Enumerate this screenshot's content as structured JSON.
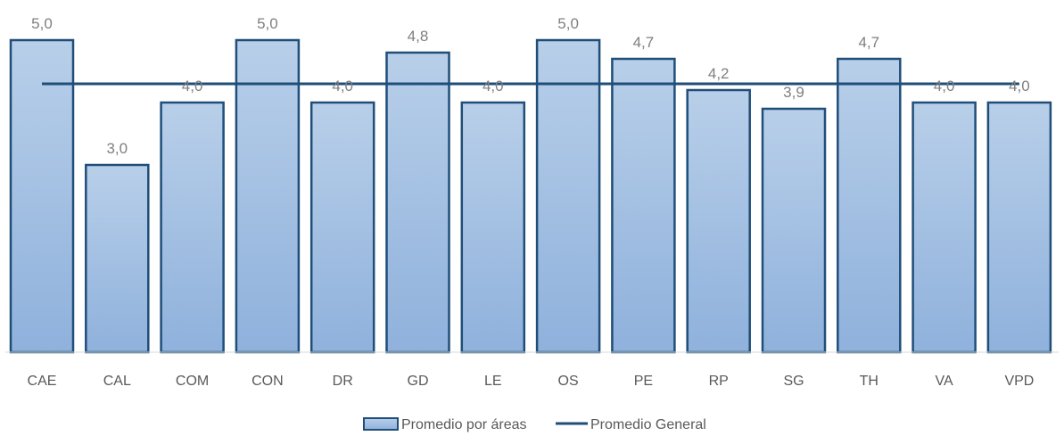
{
  "chart_data": {
    "type": "bar",
    "categories": [
      "CAE",
      "CAL",
      "COM",
      "CON",
      "DR",
      "GD",
      "LE",
      "OS",
      "PE",
      "RP",
      "SG",
      "TH",
      "VA",
      "VPD"
    ],
    "series": [
      {
        "name": "Promedio por áreas",
        "type": "bar",
        "values": [
          5.0,
          3.0,
          4.0,
          5.0,
          4.0,
          4.8,
          4.0,
          5.0,
          4.7,
          4.2,
          3.9,
          4.7,
          4.0,
          4.0
        ],
        "labels": [
          "5,0",
          "3,0",
          "4,0",
          "5,0",
          "4,0",
          "4,8",
          "4,0",
          "5,0",
          "4,7",
          "4,2",
          "3,9",
          "4,7",
          "4,0",
          "4,0"
        ],
        "fill_top": "#b8cfe9",
        "fill_bottom": "#8fb1dc",
        "stroke": "#1f4e79"
      },
      {
        "name": "Promedio General",
        "type": "line",
        "value": 4.3,
        "stroke": "#1f4e79"
      }
    ],
    "ylim": [
      0,
      5.0
    ],
    "legend_position": "bottom",
    "grid": false
  }
}
